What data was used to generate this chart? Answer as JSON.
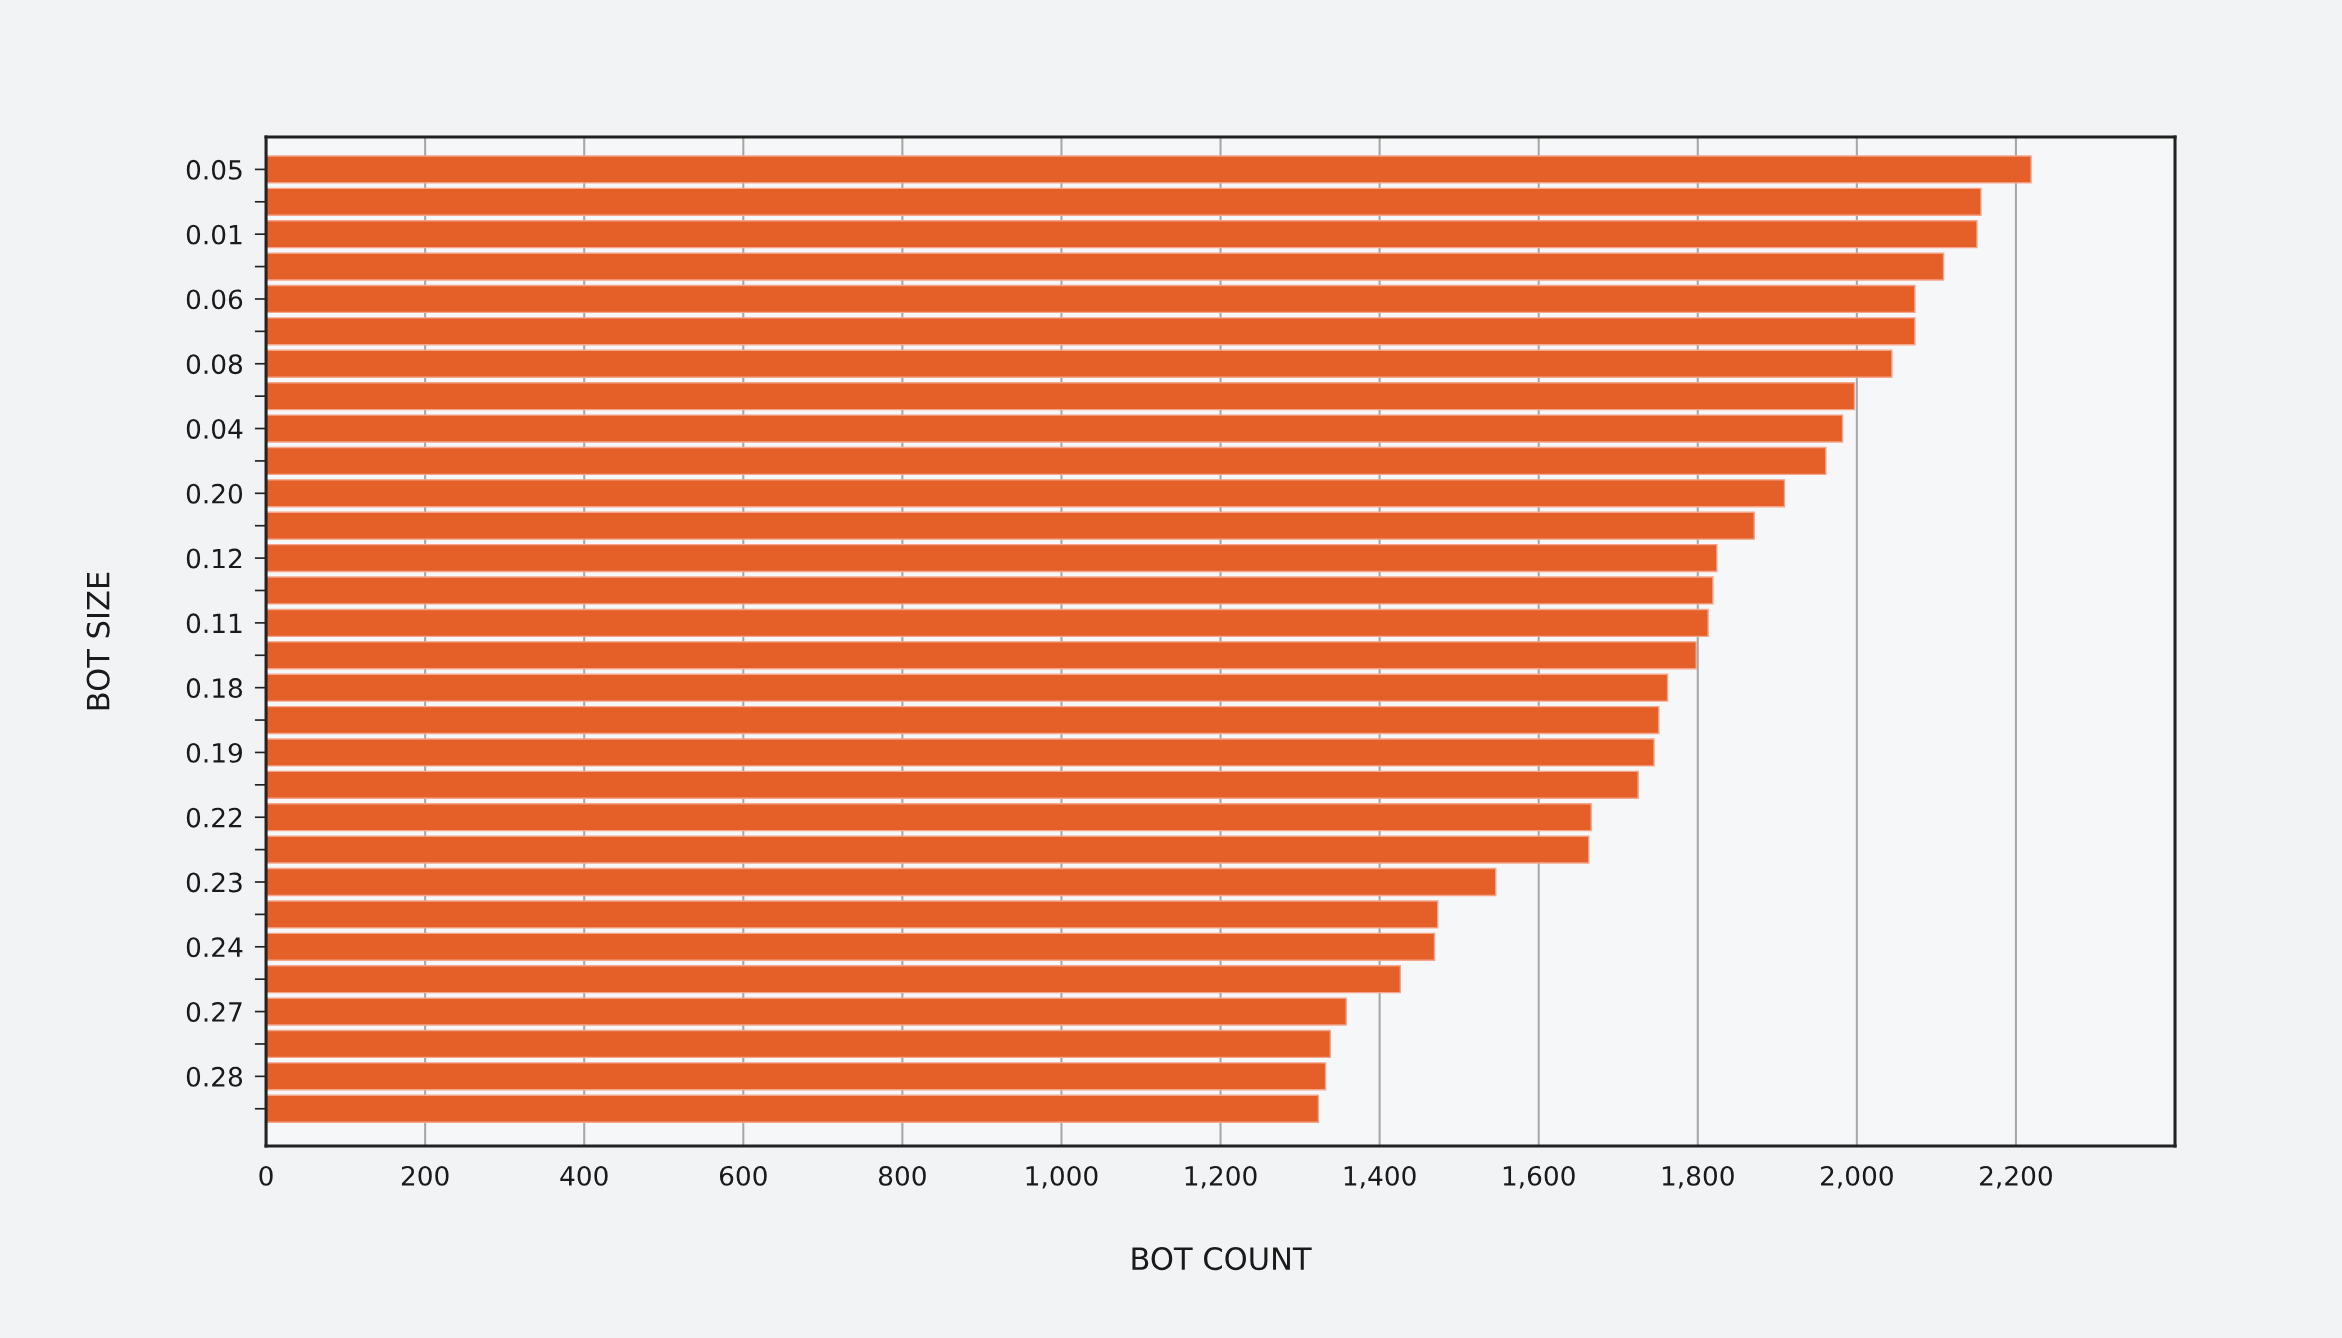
{
  "chart_data": {
    "type": "bar",
    "orientation": "horizontal",
    "xlabel": "BOT COUNT",
    "ylabel": "BOT SIZE",
    "categories": [
      "0.05",
      null,
      "0.01",
      null,
      "0.06",
      null,
      "0.08",
      null,
      "0.04",
      null,
      "0.20",
      null,
      "0.12",
      null,
      "0.11",
      null,
      "0.18",
      null,
      "0.19",
      null,
      "0.22",
      null,
      "0.23",
      null,
      "0.24",
      null,
      "0.27",
      null,
      "0.28",
      null
    ],
    "values": [
      2219,
      2156,
      2151,
      2109,
      2073,
      2073,
      2044,
      1997,
      1982,
      1961,
      1909,
      1871,
      1824,
      1819,
      1813,
      1798,
      1762,
      1751,
      1745,
      1725,
      1666,
      1663,
      1546,
      1473,
      1469,
      1426,
      1358,
      1338,
      1332,
      1323
    ],
    "color": "#e55f28",
    "xlim": [
      0,
      2400
    ],
    "xticks": [
      0,
      200,
      400,
      600,
      800,
      {
        "value": 1000,
        "label": "1,000"
      },
      {
        "value": 1200,
        "label": "1,200"
      },
      {
        "value": 1400,
        "label": "1,400"
      },
      {
        "value": 1600,
        "label": "1,600"
      },
      {
        "value": 1800,
        "label": "1,800"
      },
      {
        "value": 2000,
        "label": "2,000"
      },
      {
        "value": 2200,
        "label": "2,200"
      }
    ],
    "grid": "x",
    "legend": false
  }
}
